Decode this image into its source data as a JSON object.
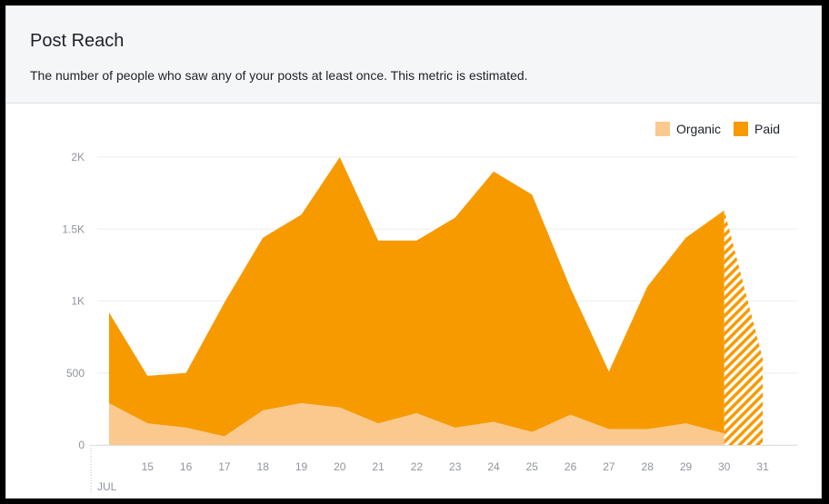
{
  "card": {
    "title": "Post Reach",
    "subtitle": "The number of people who saw any of your posts at least once. This metric is estimated."
  },
  "chart_data": {
    "type": "area",
    "stacked": true,
    "x": [
      "14",
      "15",
      "16",
      "17",
      "18",
      "19",
      "20",
      "21",
      "22",
      "23",
      "24",
      "25",
      "26",
      "27",
      "28",
      "29",
      "30",
      "31"
    ],
    "x_tick_labels": [
      "15",
      "16",
      "17",
      "18",
      "19",
      "20",
      "21",
      "22",
      "23",
      "24",
      "25",
      "26",
      "27",
      "28",
      "29",
      "30",
      "31"
    ],
    "x_month_label": "JUL",
    "series": [
      {
        "name": "Organic",
        "color": "#fbc98e",
        "values": [
          290,
          150,
          120,
          60,
          240,
          290,
          260,
          150,
          220,
          120,
          160,
          90,
          210,
          110,
          110,
          150,
          80,
          50
        ]
      },
      {
        "name": "Paid",
        "color": "#f79a00",
        "values": [
          630,
          330,
          380,
          930,
          1200,
          1310,
          1740,
          1270,
          1200,
          1460,
          1740,
          1650,
          880,
          400,
          990,
          1290,
          1550,
          550
        ]
      }
    ],
    "estimated_from_index": 16,
    "y_ticks": [
      0,
      500,
      1000,
      1500,
      2000
    ],
    "y_tick_labels": [
      "0",
      "500",
      "1K",
      "1.5K",
      "2K"
    ],
    "ylim": [
      0,
      2000
    ],
    "grid": true,
    "legend": "top-right"
  }
}
